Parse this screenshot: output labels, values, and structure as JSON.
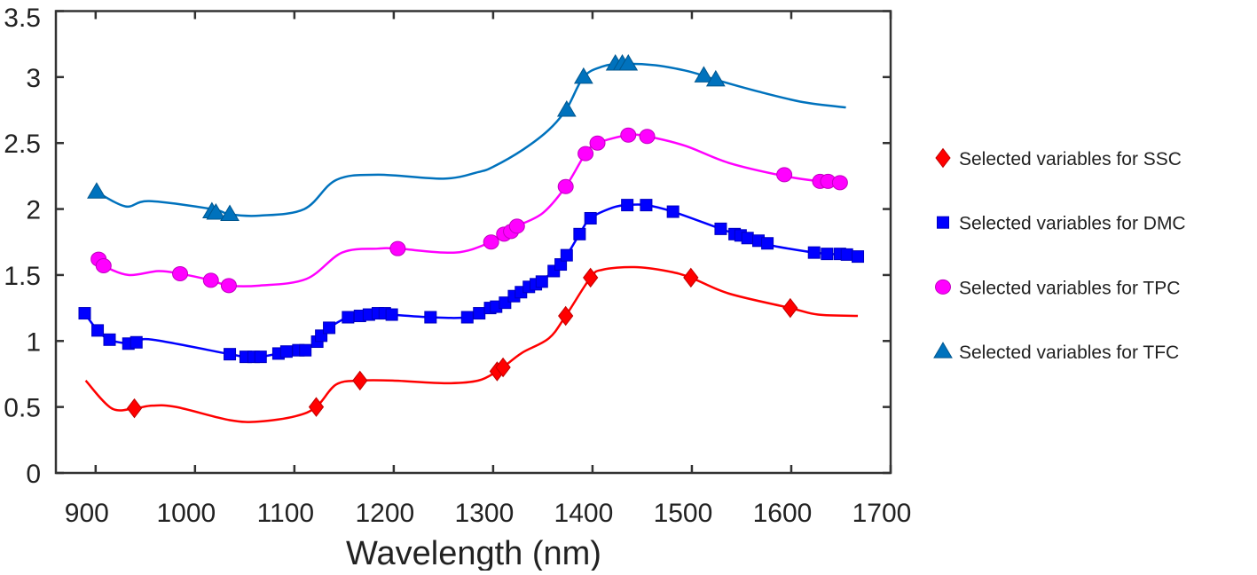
{
  "chart_data": {
    "type": "line",
    "title": "",
    "xlabel": "Wavelength (nm)",
    "ylabel": "",
    "xlim": [
      860,
      1700
    ],
    "ylim": [
      0,
      3.5
    ],
    "xticks": [
      "900",
      "1000",
      "1100",
      "1200",
      "1300",
      "1400",
      "1500",
      "1600",
      "1700"
    ],
    "xtick_values": [
      900,
      1000,
      1100,
      1200,
      1300,
      1400,
      1500,
      1600,
      1700
    ],
    "yticks": [
      "0",
      "0.5",
      "1",
      "1.5",
      "2",
      "2.5",
      "3",
      "3.5"
    ],
    "ytick_values": [
      0,
      0.5,
      1,
      1.5,
      2,
      2.5,
      3,
      3.5
    ],
    "grid": false,
    "legend_position": "right",
    "series": [
      {
        "name": "Selected variables for SSC",
        "color": "#ff0000",
        "marker": "diamond",
        "curve": [
          [
            890,
            0.7
          ],
          [
            916,
            0.49
          ],
          [
            939,
            0.49
          ],
          [
            957,
            0.51
          ],
          [
            981,
            0.5
          ],
          [
            1035,
            0.4
          ],
          [
            1065,
            0.39
          ],
          [
            1101,
            0.43
          ],
          [
            1122,
            0.5
          ],
          [
            1142,
            0.67
          ],
          [
            1166,
            0.7
          ],
          [
            1199,
            0.7
          ],
          [
            1253,
            0.68
          ],
          [
            1285,
            0.7
          ],
          [
            1304,
            0.77
          ],
          [
            1310,
            0.8
          ],
          [
            1329,
            0.91
          ],
          [
            1356,
            1.02
          ],
          [
            1373,
            1.19
          ],
          [
            1398,
            1.48
          ],
          [
            1410,
            1.54
          ],
          [
            1442,
            1.56
          ],
          [
            1475,
            1.53
          ],
          [
            1499,
            1.48
          ],
          [
            1537,
            1.36
          ],
          [
            1599,
            1.25
          ],
          [
            1627,
            1.2
          ],
          [
            1667,
            1.19
          ]
        ],
        "points": [
          [
            939,
            0.49
          ],
          [
            1122,
            0.5
          ],
          [
            1166,
            0.7
          ],
          [
            1304,
            0.77
          ],
          [
            1310,
            0.8
          ],
          [
            1373,
            1.19
          ],
          [
            1398,
            1.48
          ],
          [
            1499,
            1.48
          ],
          [
            1599,
            1.25
          ]
        ]
      },
      {
        "name": "Selected variables for DMC",
        "color": "#0000ff",
        "marker": "square",
        "curve": [
          [
            889,
            1.21
          ],
          [
            902,
            1.08
          ],
          [
            914,
            1.01
          ],
          [
            933,
            0.98
          ],
          [
            941,
            0.99
          ],
          [
            957,
            1.01
          ],
          [
            1035,
            0.9
          ],
          [
            1051,
            0.88
          ],
          [
            1066,
            0.88
          ],
          [
            1084,
            0.905
          ],
          [
            1104,
            0.93
          ],
          [
            1111,
            0.93
          ],
          [
            1123,
            0.995
          ],
          [
            1127,
            1.04
          ],
          [
            1135,
            1.1
          ],
          [
            1154,
            1.18
          ],
          [
            1175,
            1.2
          ],
          [
            1191,
            1.21
          ],
          [
            1198,
            1.2
          ],
          [
            1237,
            1.18
          ],
          [
            1274,
            1.18
          ],
          [
            1297,
            1.25
          ],
          [
            1312,
            1.29
          ],
          [
            1328,
            1.37
          ],
          [
            1343,
            1.43
          ],
          [
            1361,
            1.53
          ],
          [
            1374,
            1.65
          ],
          [
            1387,
            1.81
          ],
          [
            1398,
            1.93
          ],
          [
            1420,
            2.01
          ],
          [
            1435,
            2.03
          ],
          [
            1454,
            2.03
          ],
          [
            1481,
            1.98
          ],
          [
            1529,
            1.85
          ],
          [
            1556,
            1.78
          ],
          [
            1576,
            1.73
          ],
          [
            1623,
            1.67
          ],
          [
            1649,
            1.655
          ],
          [
            1667,
            1.64
          ]
        ],
        "points": [
          [
            889,
            1.21
          ],
          [
            902,
            1.08
          ],
          [
            914,
            1.01
          ],
          [
            933,
            0.98
          ],
          [
            941,
            0.99
          ],
          [
            1035,
            0.9
          ],
          [
            1051,
            0.88
          ],
          [
            1059,
            0.88
          ],
          [
            1066,
            0.88
          ],
          [
            1084,
            0.905
          ],
          [
            1092,
            0.92
          ],
          [
            1104,
            0.93
          ],
          [
            1111,
            0.93
          ],
          [
            1123,
            0.995
          ],
          [
            1127,
            1.04
          ],
          [
            1135,
            1.1
          ],
          [
            1154,
            1.18
          ],
          [
            1166,
            1.19
          ],
          [
            1175,
            1.2
          ],
          [
            1184,
            1.21
          ],
          [
            1191,
            1.21
          ],
          [
            1198,
            1.2
          ],
          [
            1237,
            1.18
          ],
          [
            1274,
            1.18
          ],
          [
            1286,
            1.21
          ],
          [
            1297,
            1.25
          ],
          [
            1303,
            1.26
          ],
          [
            1312,
            1.29
          ],
          [
            1321,
            1.34
          ],
          [
            1328,
            1.37
          ],
          [
            1336,
            1.41
          ],
          [
            1343,
            1.43
          ],
          [
            1349,
            1.45
          ],
          [
            1361,
            1.53
          ],
          [
            1368,
            1.58
          ],
          [
            1374,
            1.65
          ],
          [
            1387,
            1.81
          ],
          [
            1398,
            1.93
          ],
          [
            1435,
            2.03
          ],
          [
            1454,
            2.03
          ],
          [
            1481,
            1.98
          ],
          [
            1529,
            1.85
          ],
          [
            1543,
            1.81
          ],
          [
            1549,
            1.8
          ],
          [
            1556,
            1.78
          ],
          [
            1567,
            1.76
          ],
          [
            1576,
            1.74
          ],
          [
            1623,
            1.67
          ],
          [
            1636,
            1.66
          ],
          [
            1649,
            1.66
          ],
          [
            1656,
            1.655
          ],
          [
            1667,
            1.64
          ]
        ]
      },
      {
        "name": "Selected variables for TPC",
        "color": "#ff00ff",
        "marker": "circle",
        "curve": [
          [
            903,
            1.62
          ],
          [
            908,
            1.57
          ],
          [
            933,
            1.5
          ],
          [
            963,
            1.53
          ],
          [
            985,
            1.51
          ],
          [
            1016,
            1.46
          ],
          [
            1034,
            1.42
          ],
          [
            1065,
            1.42
          ],
          [
            1112,
            1.47
          ],
          [
            1148,
            1.67
          ],
          [
            1184,
            1.7
          ],
          [
            1204,
            1.7
          ],
          [
            1262,
            1.67
          ],
          [
            1298,
            1.75
          ],
          [
            1311,
            1.81
          ],
          [
            1324,
            1.87
          ],
          [
            1350,
            1.97
          ],
          [
            1373,
            2.17
          ],
          [
            1393,
            2.42
          ],
          [
            1405,
            2.5
          ],
          [
            1436,
            2.56
          ],
          [
            1455,
            2.55
          ],
          [
            1493,
            2.48
          ],
          [
            1537,
            2.35
          ],
          [
            1593,
            2.25
          ],
          [
            1629,
            2.21
          ],
          [
            1649,
            2.2
          ]
        ],
        "points": [
          [
            903,
            1.62
          ],
          [
            908,
            1.57
          ],
          [
            985,
            1.51
          ],
          [
            1016,
            1.46
          ],
          [
            1034,
            1.42
          ],
          [
            1204,
            1.7
          ],
          [
            1298,
            1.75
          ],
          [
            1311,
            1.81
          ],
          [
            1318,
            1.83
          ],
          [
            1324,
            1.87
          ],
          [
            1373,
            2.17
          ],
          [
            1393,
            2.42
          ],
          [
            1405,
            2.5
          ],
          [
            1436,
            2.56
          ],
          [
            1455,
            2.55
          ],
          [
            1593,
            2.26
          ],
          [
            1629,
            2.21
          ],
          [
            1637,
            2.21
          ],
          [
            1649,
            2.2
          ]
        ]
      },
      {
        "name": "Selected variables for TFC",
        "color": "#0072bd",
        "marker": "triangle",
        "curve": [
          [
            901,
            2.13
          ],
          [
            930,
            2.02
          ],
          [
            954,
            2.06
          ],
          [
            1017,
            2.0
          ],
          [
            1035,
            1.96
          ],
          [
            1065,
            1.95
          ],
          [
            1110,
            2.0
          ],
          [
            1142,
            2.22
          ],
          [
            1184,
            2.26
          ],
          [
            1250,
            2.23
          ],
          [
            1285,
            2.28
          ],
          [
            1300,
            2.32
          ],
          [
            1330,
            2.45
          ],
          [
            1356,
            2.6
          ],
          [
            1374,
            2.76
          ],
          [
            1391,
            3.0
          ],
          [
            1410,
            3.08
          ],
          [
            1430,
            3.1
          ],
          [
            1463,
            3.09
          ],
          [
            1493,
            3.05
          ],
          [
            1512,
            3.01
          ],
          [
            1524,
            2.98
          ],
          [
            1567,
            2.89
          ],
          [
            1612,
            2.81
          ],
          [
            1655,
            2.77
          ]
        ],
        "points": [
          [
            901,
            2.13
          ],
          [
            1017,
            1.98
          ],
          [
            1021,
            1.97
          ],
          [
            1035,
            1.96
          ],
          [
            1374,
            2.75
          ],
          [
            1391,
            3.0
          ],
          [
            1423,
            3.1
          ],
          [
            1430,
            3.1
          ],
          [
            1436,
            3.1
          ],
          [
            1512,
            3.01
          ],
          [
            1524,
            2.98
          ]
        ]
      }
    ]
  }
}
